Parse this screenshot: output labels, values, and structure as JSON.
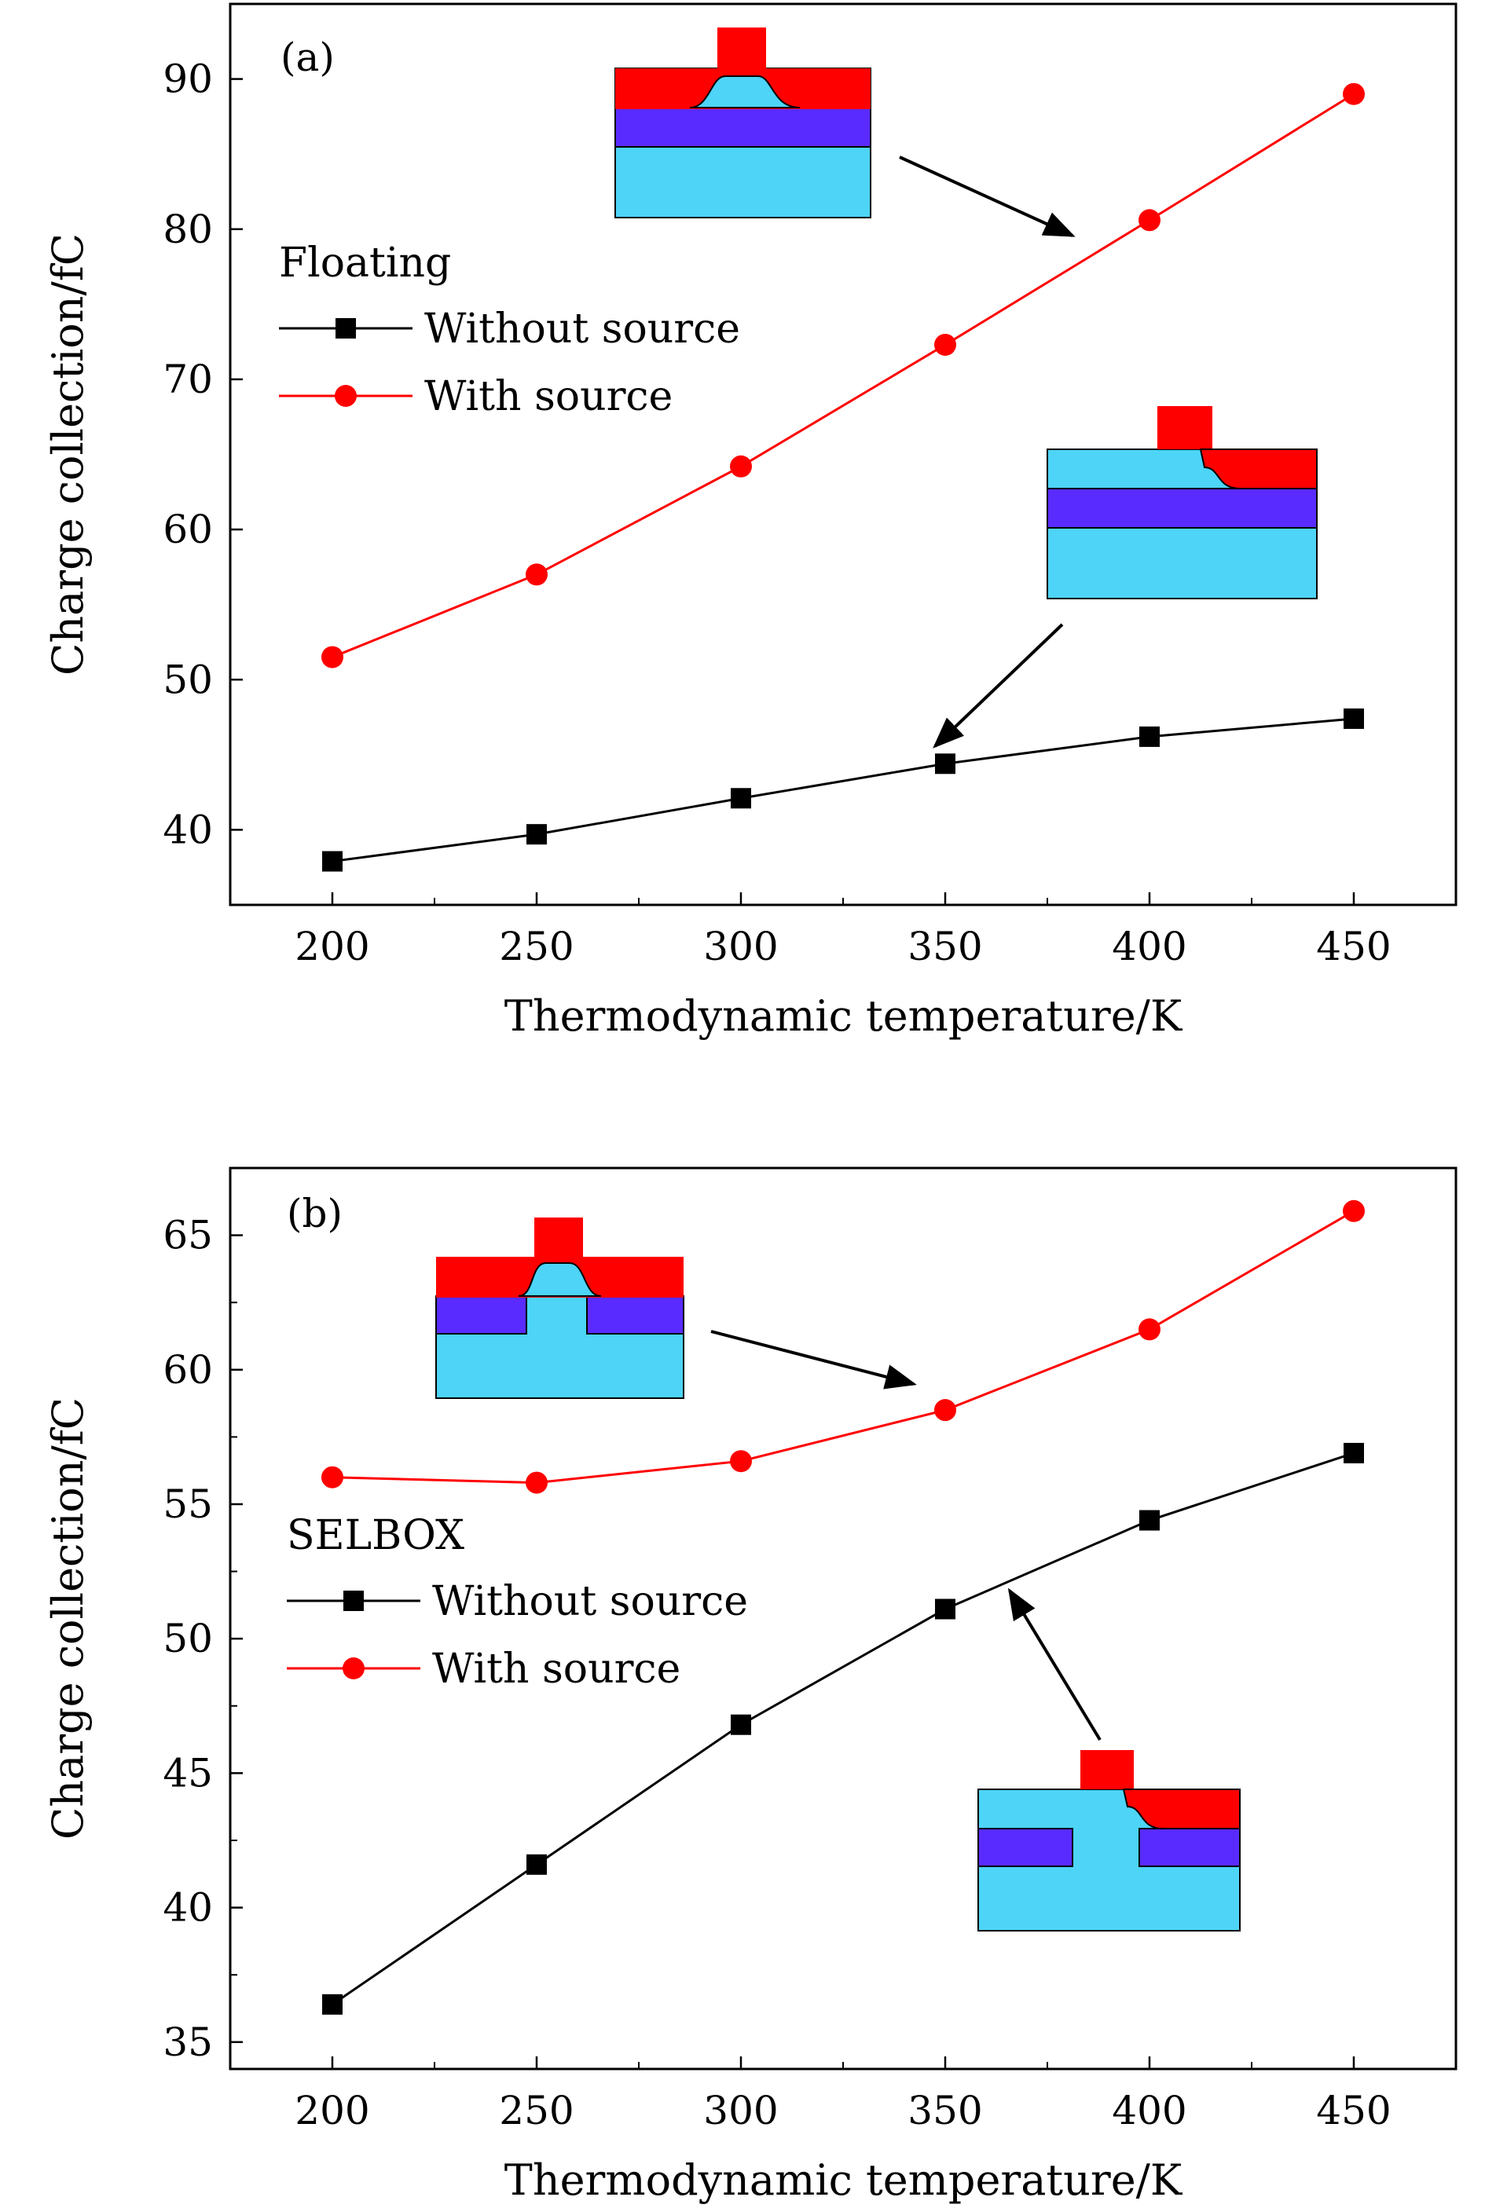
{
  "chart_data": [
    {
      "type": "line",
      "panel_label": "(a)",
      "title": "",
      "xlabel": "Thermodynamic temperature/K",
      "ylabel": "Charge collection/fC",
      "xlim": [
        175,
        475
      ],
      "ylim": [
        35,
        95
      ],
      "x_ticks": [
        200,
        250,
        300,
        350,
        400,
        450
      ],
      "y_ticks": [
        40,
        50,
        60,
        70,
        80,
        90
      ],
      "grid": false,
      "legend": {
        "title": "Floating",
        "placement": "middle-left"
      },
      "x": [
        200,
        250,
        300,
        350,
        400,
        450
      ],
      "series": [
        {
          "name": "Without source",
          "marker": "square",
          "color": "#000000",
          "values": [
            37.9,
            39.7,
            42.1,
            44.4,
            46.2,
            47.4
          ]
        },
        {
          "name": "With source",
          "marker": "circle",
          "color": "#ff0000",
          "values": [
            51.5,
            57.0,
            64.2,
            72.3,
            80.6,
            89.0
          ]
        }
      ]
    },
    {
      "type": "line",
      "panel_label": "(b)",
      "title": "",
      "xlabel": "Thermodynamic temperature/K",
      "ylabel": "Charge collection/fC",
      "xlim": [
        175,
        475
      ],
      "ylim": [
        34,
        67.5
      ],
      "x_ticks": [
        200,
        250,
        300,
        350,
        400,
        450
      ],
      "y_ticks": [
        35,
        40,
        45,
        50,
        55,
        60,
        65
      ],
      "grid": false,
      "legend": {
        "title": "SELBOX",
        "placement": "middle-left"
      },
      "x": [
        200,
        250,
        300,
        350,
        400,
        450
      ],
      "series": [
        {
          "name": "Without source",
          "marker": "square",
          "color": "#000000",
          "values": [
            36.4,
            41.6,
            46.8,
            51.1,
            54.4,
            56.9
          ]
        },
        {
          "name": "With source",
          "marker": "circle",
          "color": "#ff0000",
          "values": [
            56.0,
            55.8,
            56.6,
            58.5,
            61.5,
            65.9
          ]
        }
      ]
    }
  ],
  "colors": {
    "gate_metal": "#ff0000",
    "buried_oxide": "#5a2bff",
    "silicon": "#4dd4f7",
    "without_source": "#000000",
    "with_source": "#ff0000"
  }
}
